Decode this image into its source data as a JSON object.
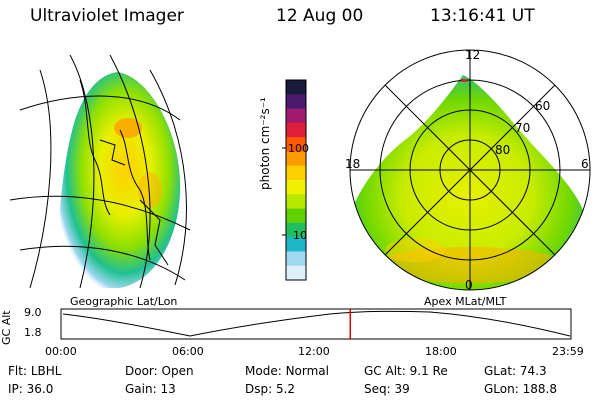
{
  "header": {
    "title": "Ultraviolet Imager",
    "date": "12 Aug 00",
    "time": "13:16:41  UT"
  },
  "colorbar": {
    "label": "photon cm⁻²s⁻¹",
    "ticks": [
      "100",
      "10"
    ],
    "colors": [
      "#1a1a3a",
      "#4a1a6e",
      "#a01a70",
      "#e0203a",
      "#ff5a00",
      "#ff9a00",
      "#ffd000",
      "#f0f000",
      "#b8e800",
      "#60d000",
      "#20c060",
      "#20b8c8",
      "#a0d8f0",
      "#e0f0fa"
    ]
  },
  "panels": {
    "geo_label": "Geographic Lat/Lon",
    "apex_label": "Apex  MLat/MLT",
    "polar": {
      "top_label": "12",
      "bottom_label": "0",
      "left_label": "18",
      "right_label": "6",
      "ring_labels": [
        "60",
        "70",
        "80"
      ]
    }
  },
  "timeline": {
    "ylabel": "GC Alt",
    "y_ticks": [
      "9.0",
      "1.8"
    ],
    "x_ticks": [
      "00:00",
      "06:00",
      "12:00",
      "18:00",
      "23:59"
    ],
    "current_time_fraction": 0.5672
  },
  "status": {
    "row1": [
      {
        "key": "Flt:",
        "value": "LBHL"
      },
      {
        "key": "Door:",
        "value": "Open"
      },
      {
        "key": "Mode:",
        "value": "Normal"
      },
      {
        "key": "GC Alt:",
        "value": "9.1 Re"
      },
      {
        "key": "GLat:",
        "value": "74.3"
      }
    ],
    "row2": [
      {
        "key": "IP:",
        "value": "36.0"
      },
      {
        "key": "Gain:",
        "value": "13"
      },
      {
        "key": "Dsp:",
        "value": "5.2"
      },
      {
        "key": "Seq:",
        "value": "39"
      },
      {
        "key": "GLon:",
        "value": "188.8"
      }
    ]
  }
}
